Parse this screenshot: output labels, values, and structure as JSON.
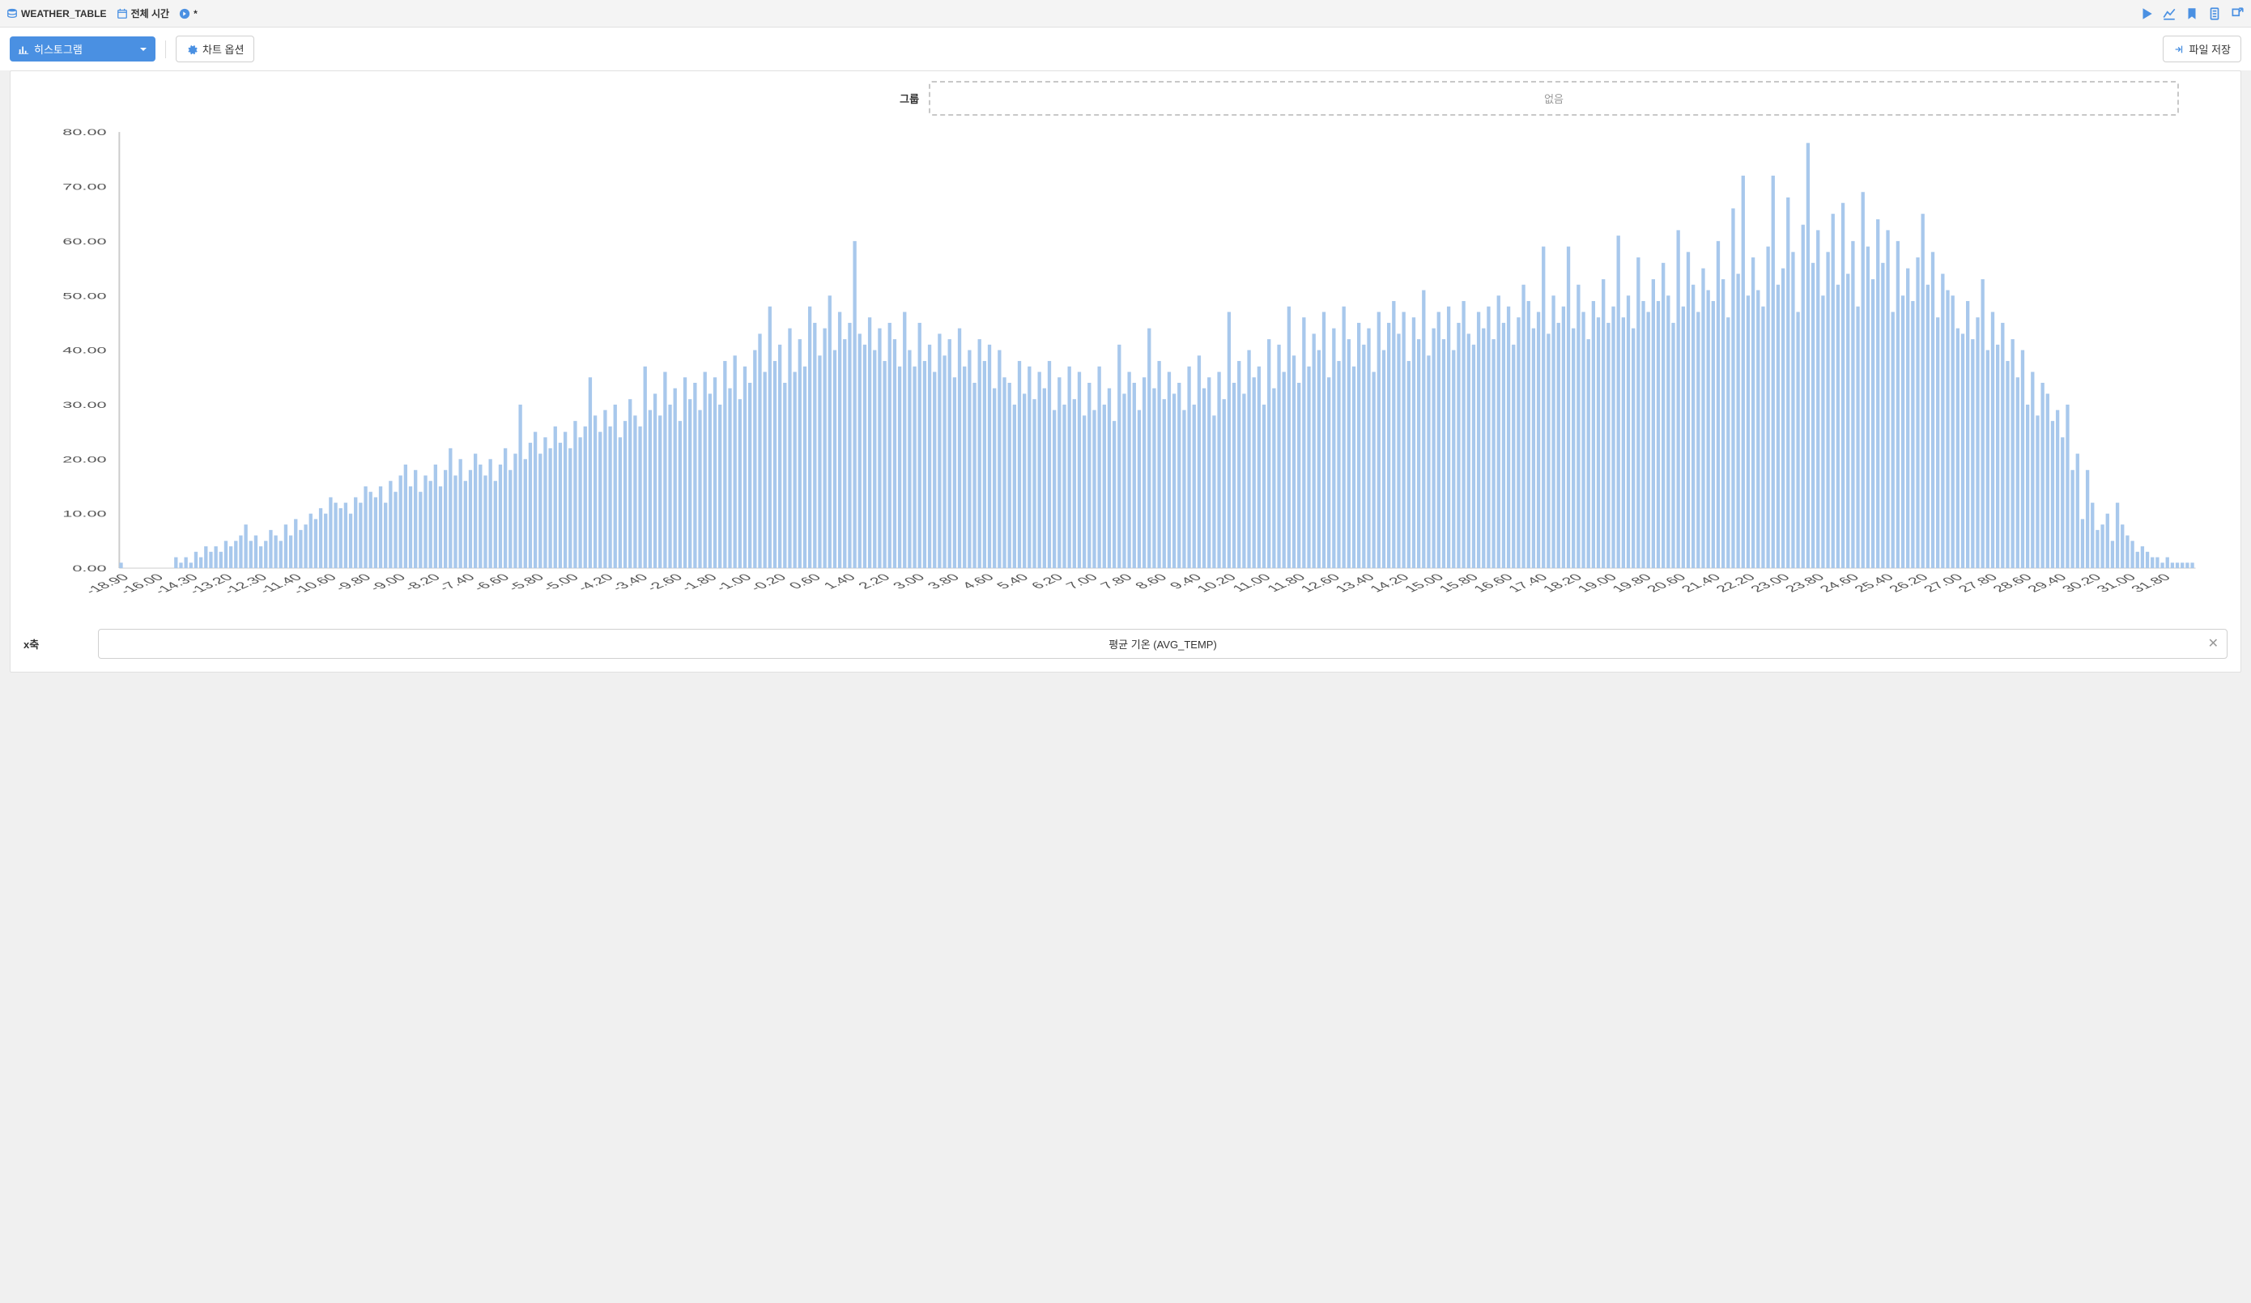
{
  "topbar": {
    "table_name": "WEATHER_TABLE",
    "time_label": "전체 시간",
    "changed_marker": "*"
  },
  "toolbar": {
    "chart_type": "히스토그램",
    "chart_options": "차트 옵션",
    "save_file": "파일 저장"
  },
  "group": {
    "label": "그룹",
    "placeholder": "없음"
  },
  "xaxis": {
    "label": "x축",
    "field": "평균 기온 (AVG_TEMP)"
  },
  "chart": {
    "type": "histogram",
    "bar_color": "#a8c8ec",
    "background_color": "#ffffff",
    "axis_color": "#cccccc",
    "tick_font_size": 11,
    "ylim": [
      0,
      80
    ],
    "ytick_step": 10,
    "xtick_labels": [
      "-18.90",
      "-16.00",
      "-14.30",
      "-13.20",
      "-12.30",
      "-11.40",
      "-10.60",
      "-9.80",
      "-9.00",
      "-8.20",
      "-7.40",
      "-6.60",
      "-5.80",
      "-5.00",
      "-4.20",
      "-3.40",
      "-2.60",
      "-1.80",
      "-1.00",
      "-0.20",
      "0.60",
      "1.40",
      "2.20",
      "3.00",
      "3.80",
      "4.60",
      "5.40",
      "6.20",
      "7.00",
      "7.80",
      "8.60",
      "9.40",
      "10.20",
      "11.00",
      "11.80",
      "12.60",
      "13.40",
      "14.20",
      "15.00",
      "15.80",
      "16.60",
      "17.40",
      "18.20",
      "19.00",
      "19.80",
      "20.60",
      "21.40",
      "22.20",
      "23.00",
      "23.80",
      "24.60",
      "25.40",
      "26.20",
      "27.00",
      "27.80",
      "28.60",
      "29.40",
      "30.20",
      "31.00",
      "31.80"
    ],
    "values": [
      1,
      0,
      0,
      0,
      0,
      0,
      0,
      0,
      0,
      0,
      0,
      2,
      1,
      2,
      1,
      3,
      2,
      4,
      3,
      4,
      3,
      5,
      4,
      5,
      6,
      8,
      5,
      6,
      4,
      5,
      7,
      6,
      5,
      8,
      6,
      9,
      7,
      8,
      10,
      9,
      11,
      10,
      13,
      12,
      11,
      12,
      10,
      13,
      12,
      15,
      14,
      13,
      15,
      12,
      16,
      14,
      17,
      19,
      15,
      18,
      14,
      17,
      16,
      19,
      15,
      18,
      22,
      17,
      20,
      16,
      18,
      21,
      19,
      17,
      20,
      16,
      19,
      22,
      18,
      21,
      30,
      20,
      23,
      25,
      21,
      24,
      22,
      26,
      23,
      25,
      22,
      27,
      24,
      26,
      35,
      28,
      25,
      29,
      26,
      30,
      24,
      27,
      31,
      28,
      26,
      37,
      29,
      32,
      28,
      36,
      30,
      33,
      27,
      35,
      31,
      34,
      29,
      36,
      32,
      35,
      30,
      38,
      33,
      39,
      31,
      37,
      34,
      40,
      43,
      36,
      48,
      38,
      41,
      34,
      44,
      36,
      42,
      37,
      48,
      45,
      39,
      44,
      50,
      40,
      47,
      42,
      45,
      60,
      43,
      41,
      46,
      40,
      44,
      38,
      45,
      42,
      37,
      47,
      40,
      37,
      45,
      38,
      41,
      36,
      43,
      39,
      42,
      35,
      44,
      37,
      40,
      34,
      42,
      38,
      41,
      33,
      40,
      35,
      34,
      30,
      38,
      32,
      37,
      31,
      36,
      33,
      38,
      29,
      35,
      30,
      37,
      31,
      36,
      28,
      34,
      29,
      37,
      30,
      33,
      27,
      41,
      32,
      36,
      34,
      29,
      35,
      44,
      33,
      38,
      31,
      36,
      32,
      34,
      29,
      37,
      30,
      39,
      33,
      35,
      28,
      36,
      31,
      47,
      34,
      38,
      32,
      40,
      35,
      37,
      30,
      42,
      33,
      41,
      36,
      48,
      39,
      34,
      46,
      37,
      43,
      40,
      47,
      35,
      44,
      38,
      48,
      42,
      37,
      45,
      41,
      44,
      36,
      47,
      40,
      45,
      49,
      43,
      47,
      38,
      46,
      42,
      51,
      39,
      44,
      47,
      42,
      48,
      40,
      45,
      49,
      43,
      41,
      47,
      44,
      48,
      42,
      50,
      45,
      48,
      41,
      46,
      52,
      49,
      44,
      47,
      59,
      43,
      50,
      45,
      48,
      59,
      44,
      52,
      47,
      42,
      49,
      46,
      53,
      45,
      48,
      61,
      46,
      50,
      44,
      57,
      49,
      47,
      53,
      49,
      56,
      50,
      45,
      62,
      48,
      58,
      52,
      47,
      55,
      51,
      49,
      60,
      53,
      46,
      66,
      54,
      72,
      50,
      57,
      51,
      48,
      59,
      72,
      52,
      55,
      68,
      58,
      47,
      63,
      78,
      56,
      62,
      50,
      58,
      65,
      52,
      67,
      54,
      60,
      48,
      69,
      59,
      53,
      64,
      56,
      62,
      47,
      60,
      50,
      55,
      49,
      57,
      65,
      52,
      58,
      46,
      54,
      51,
      50,
      44,
      43,
      49,
      42,
      46,
      53,
      40,
      47,
      41,
      45,
      38,
      42,
      35,
      40,
      30,
      36,
      28,
      34,
      32,
      27,
      29,
      24,
      30,
      18,
      21,
      9,
      18,
      12,
      7,
      8,
      10,
      5,
      12,
      8,
      6,
      5,
      3,
      4,
      3,
      2,
      2,
      1,
      2,
      1,
      1,
      1,
      1,
      1
    ]
  }
}
